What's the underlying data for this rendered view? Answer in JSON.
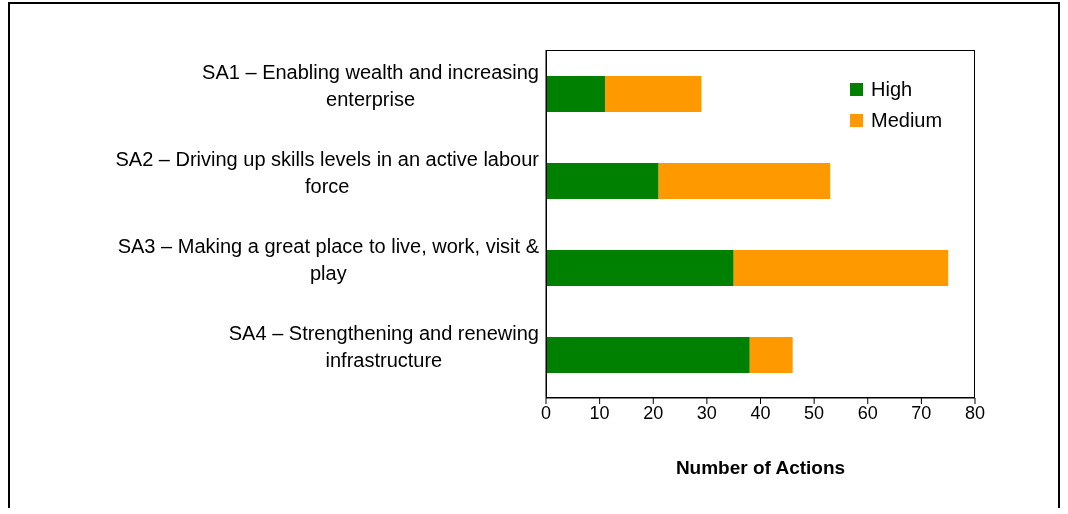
{
  "chart_data": {
    "type": "bar",
    "orientation": "horizontal",
    "stacked": true,
    "categories": [
      "SA1 – Enabling wealth and increasing enterprise",
      "SA2 – Driving up skills levels in an active labour force",
      "SA3 – Making a great place to live, work, visit & play",
      "SA4 – Strengthening and renewing infrastructure"
    ],
    "series": [
      {
        "name": "High",
        "color": "#008000",
        "values": [
          11,
          21,
          35,
          38
        ]
      },
      {
        "name": "Medium",
        "color": "#ff9900",
        "values": [
          18,
          32,
          40,
          8
        ]
      }
    ],
    "xlim": [
      0,
      80
    ],
    "xticks": [
      0,
      10,
      20,
      30,
      40,
      50,
      60,
      70,
      80
    ],
    "xlabel": "Number of Actions",
    "grid": false,
    "legend": "top right"
  }
}
